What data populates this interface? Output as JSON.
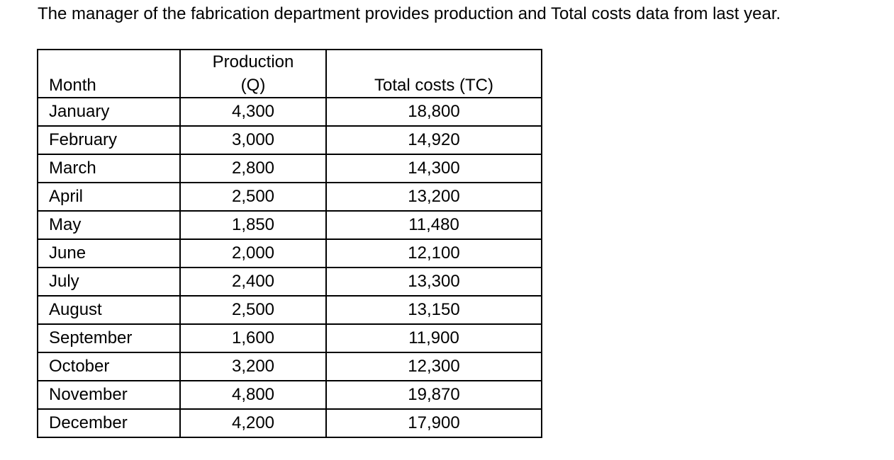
{
  "document": {
    "intro_text": "The manager of the fabrication department provides production and Total costs data from last year.",
    "table": {
      "headers": {
        "month": "Month",
        "production_line1": "Production",
        "production_line2": "(Q)",
        "total_costs": "Total costs (TC)"
      },
      "rows": [
        {
          "month": "January",
          "q": "4,300",
          "tc": "18,800"
        },
        {
          "month": "February",
          "q": "3,000",
          "tc": "14,920"
        },
        {
          "month": "March",
          "q": "2,800",
          "tc": "14,300"
        },
        {
          "month": "April",
          "q": "2,500",
          "tc": "13,200"
        },
        {
          "month": "May",
          "q": "1,850",
          "tc": "11,480"
        },
        {
          "month": "June",
          "q": "2,000",
          "tc": "12,100"
        },
        {
          "month": "July",
          "q": "2,400",
          "tc": "13,300"
        },
        {
          "month": "August",
          "q": "2,500",
          "tc": "13,150"
        },
        {
          "month": "September",
          "q": "1,600",
          "tc": "11,900"
        },
        {
          "month": "October",
          "q": "3,200",
          "tc": "12,300"
        },
        {
          "month": "November",
          "q": "4,800",
          "tc": "19,870"
        },
        {
          "month": "December",
          "q": "4,200",
          "tc": "17,900"
        }
      ]
    }
  }
}
